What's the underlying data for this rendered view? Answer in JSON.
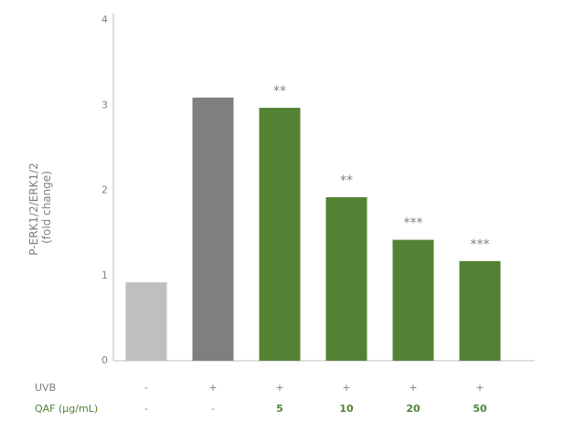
{
  "chart_data": {
    "type": "bar",
    "y_label": [
      "P-ERK1/2/ERK1/2",
      "(fold change)"
    ],
    "values": [
      0.92,
      3.09,
      2.97,
      1.92,
      1.42,
      1.17
    ],
    "colors": [
      "#bfbfbf",
      "#7f7f7f",
      "#548235",
      "#548235",
      "#548235",
      "#548235"
    ],
    "annotations": [
      null,
      null,
      "**",
      "**",
      "***",
      "***"
    ],
    "ylim": [
      0,
      4
    ],
    "yticks": [
      0,
      1,
      2,
      3,
      4
    ],
    "rows": [
      {
        "label": "UVB",
        "color": "#808080",
        "values": [
          "-",
          "+",
          "+",
          "+",
          "+",
          "+"
        ]
      },
      {
        "label": "QAF (μg/mL)",
        "color": "#548235",
        "values": [
          "-",
          "-",
          "5",
          "10",
          "20",
          "50"
        ]
      }
    ]
  }
}
